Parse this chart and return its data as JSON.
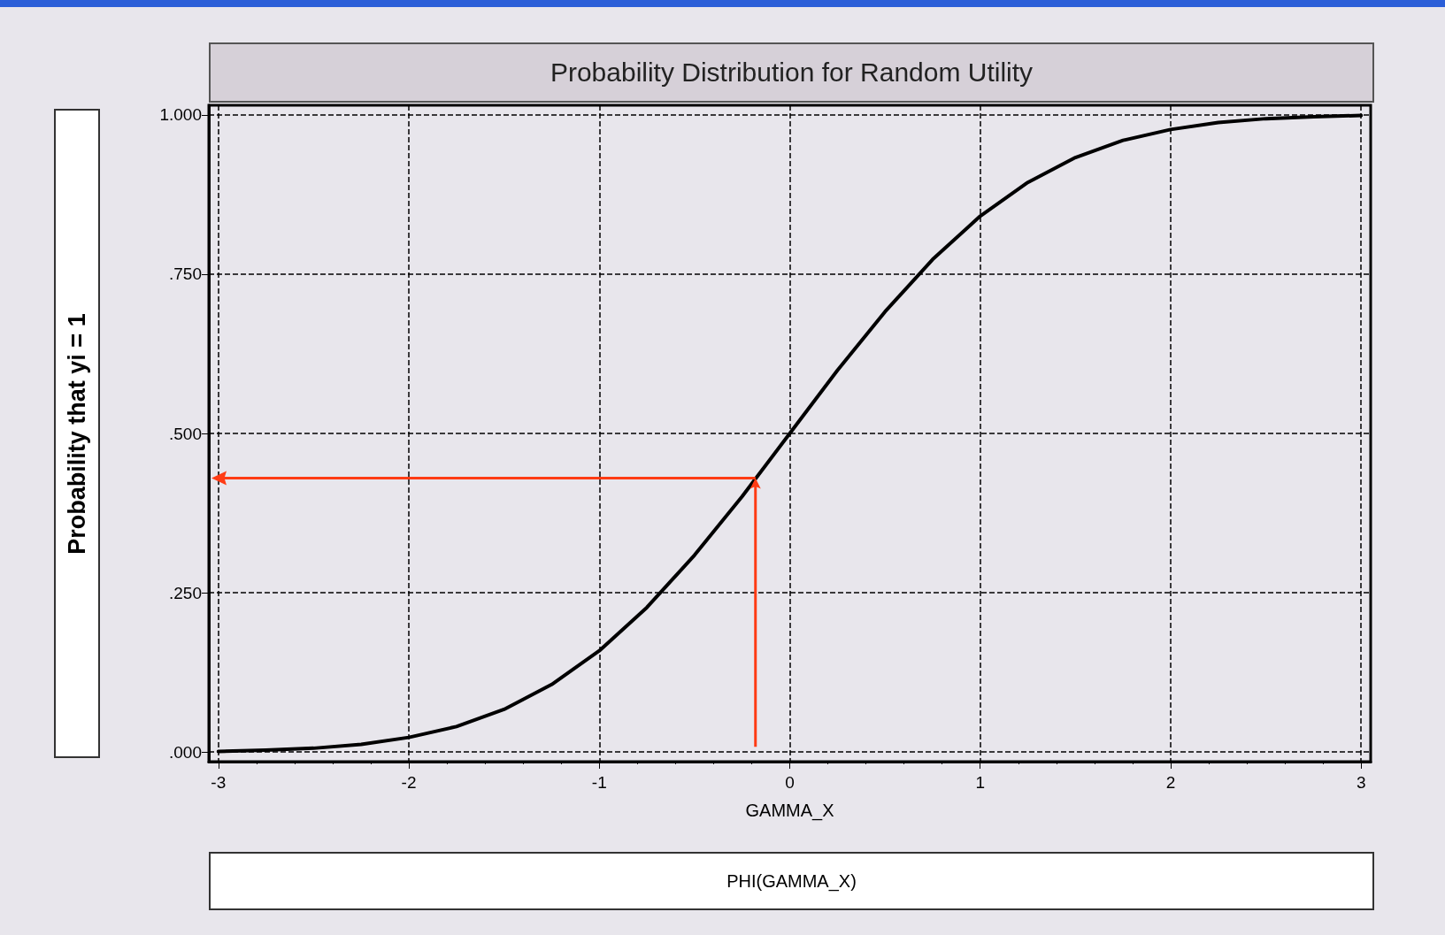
{
  "chart_data": {
    "type": "line",
    "title": "Probability Distribution for Random Utility",
    "xlabel": "GAMMA_X",
    "ylabel": "Probability that yi = 1",
    "x": [
      -3,
      -2.75,
      -2.5,
      -2.25,
      -2,
      -1.75,
      -1.5,
      -1.25,
      -1,
      -0.75,
      -0.5,
      -0.25,
      0,
      0.25,
      0.5,
      0.75,
      1,
      1.25,
      1.5,
      1.75,
      2,
      2.25,
      2.5,
      2.75,
      3
    ],
    "series": [
      {
        "name": "PHI(GAMMA_X)",
        "color": "#000000",
        "values": [
          0.001,
          0.003,
          0.006,
          0.012,
          0.023,
          0.04,
          0.067,
          0.106,
          0.159,
          0.227,
          0.309,
          0.401,
          0.5,
          0.599,
          0.691,
          0.773,
          0.841,
          0.894,
          0.933,
          0.96,
          0.977,
          0.988,
          0.994,
          0.997,
          0.999
        ]
      }
    ],
    "xlim": [
      -3.05,
      3.05
    ],
    "xticks": [
      -3,
      -2,
      -1,
      0,
      1,
      2,
      3
    ],
    "ylim": [
      -0.015,
      1.015
    ],
    "yticks": [
      {
        "value": 0,
        "label": ".000"
      },
      {
        "value": 0.25,
        "label": ".250"
      },
      {
        "value": 0.5,
        "label": ".500"
      },
      {
        "value": 0.75,
        "label": ".750"
      },
      {
        "value": 1,
        "label": "1.000"
      }
    ],
    "grid": true,
    "legend": "bottom",
    "marker": "none",
    "line_style": "solid"
  }
}
